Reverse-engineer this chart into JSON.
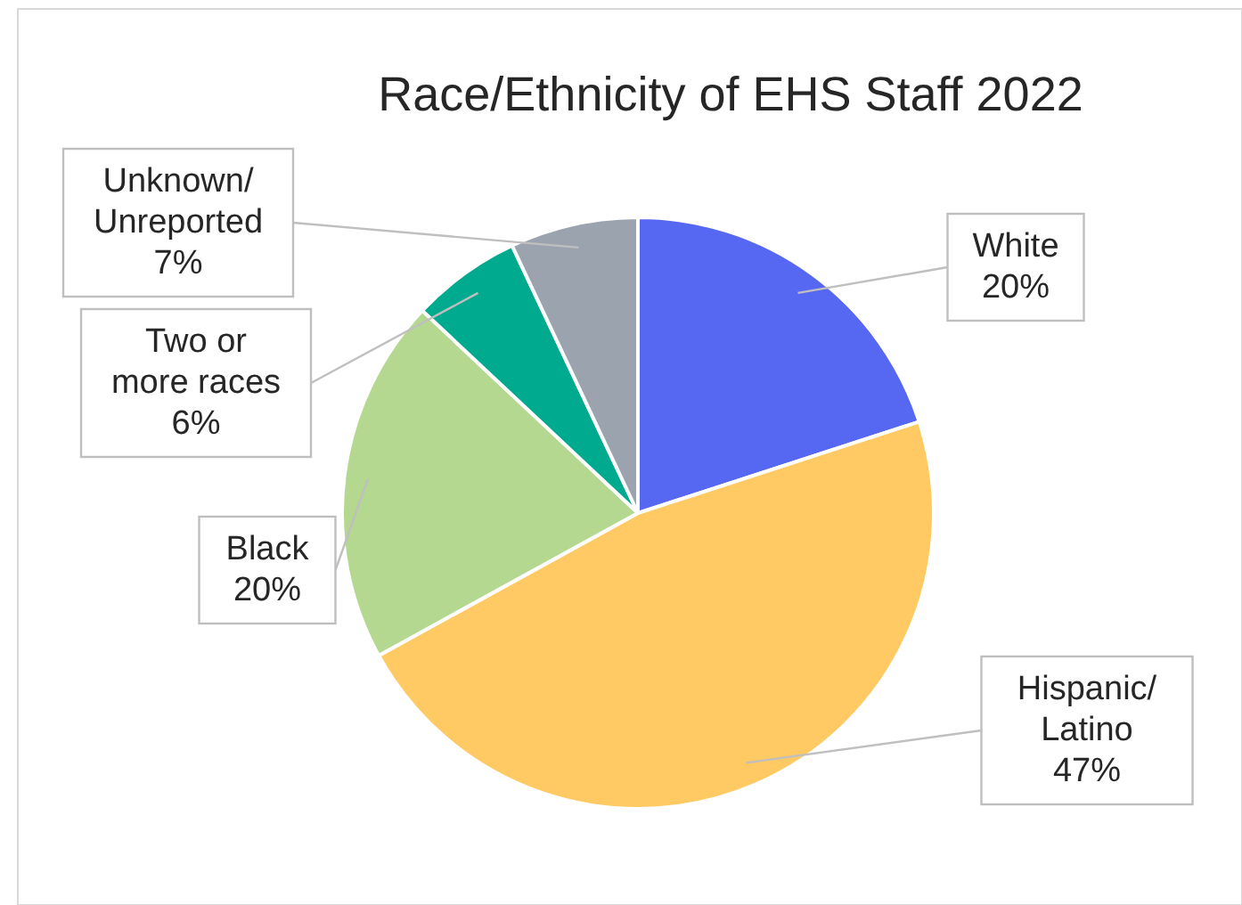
{
  "chart_data": {
    "type": "pie",
    "title": "Race/Ethnicity of EHS Staff 2022",
    "categories": [
      "White",
      "Hispanic/Latino",
      "Black",
      "Two or more races",
      "Unknown/Unreported"
    ],
    "values": [
      20,
      47,
      20,
      6,
      7
    ],
    "value_labels": [
      "20%",
      "47%",
      "20%",
      "6%",
      "7%"
    ],
    "colors": [
      "#5668f2",
      "#ffc964",
      "#b4d890",
      "#00aa8e",
      "#9ba4ae"
    ]
  }
}
